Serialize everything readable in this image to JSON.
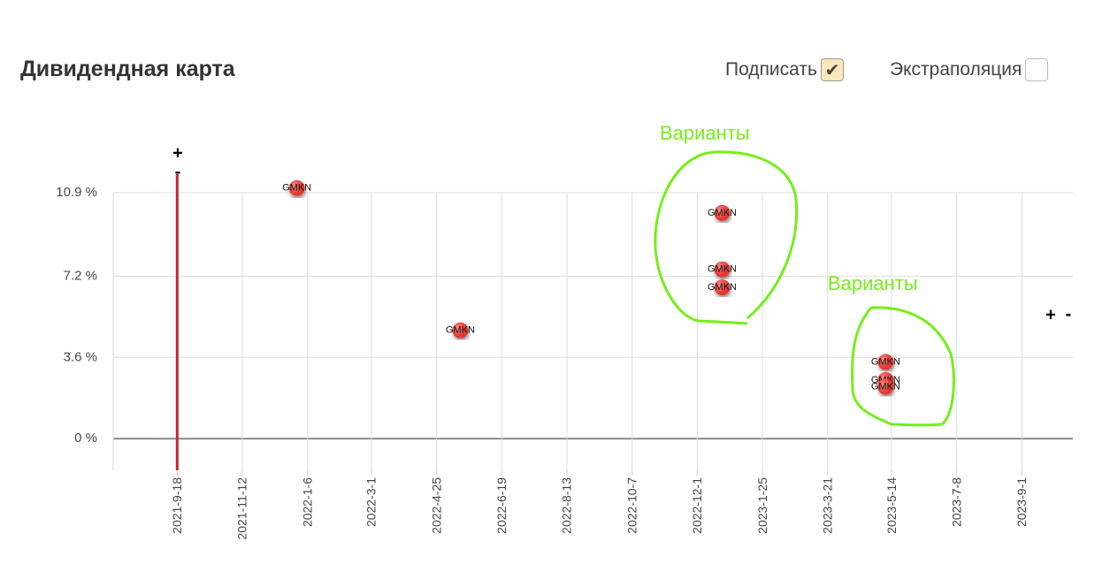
{
  "header": {
    "title": "Дивидендная карта",
    "controls": [
      {
        "label": "Подписать",
        "checked": true
      },
      {
        "label": "Экстраполяция",
        "checked": false
      }
    ]
  },
  "chart_data": {
    "type": "scatter",
    "x": [
      "2021-12-28",
      "2022-5-15",
      "2022-12-22",
      "2022-12-22",
      "2022-12-22",
      "2023-5-9",
      "2023-5-9",
      "2023-5-9"
    ],
    "values": [
      11.1,
      4.8,
      10.0,
      7.5,
      6.7,
      3.4,
      2.6,
      2.3
    ],
    "labels": [
      "GMKN",
      "GMKN",
      "GMKN",
      "GMKN",
      "GMKN",
      "GMKN",
      "GMKN",
      "GMKN"
    ],
    "color": "#e53935",
    "xlim": [
      "2021-7-26",
      "2023-10-14"
    ],
    "xticks": [
      "2021-9-18",
      "2021-11-12",
      "2022-1-6",
      "2022-3-1",
      "2022-4-25",
      "2022-6-19",
      "2022-8-13",
      "2022-10-7",
      "2022-12-1",
      "2023-1-25",
      "2023-3-21",
      "2023-5-14",
      "2023-7-8",
      "2023-9-1"
    ],
    "ylim": [
      -1.4,
      11.6
    ],
    "yticks": [
      {
        "value": 0,
        "label": "0 %"
      },
      {
        "value": 3.6,
        "label": "3.6 %"
      },
      {
        "value": 7.2,
        "label": "7.2 %"
      },
      {
        "value": 10.9,
        "label": "10.9 %"
      }
    ],
    "grid": true,
    "marker_x": "2021-9-18",
    "marker_color": "#c62828",
    "annotations": [
      "Варианты",
      "Варианты"
    ],
    "zoom_controls": [
      "+",
      "-"
    ]
  }
}
